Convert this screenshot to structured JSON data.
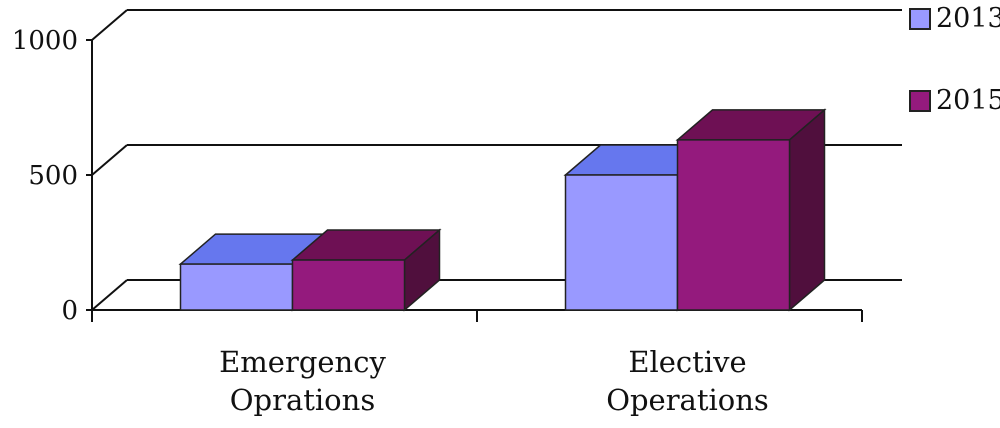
{
  "chart_data": {
    "type": "bar",
    "style": "3d-clustered-column",
    "categories": [
      "Emergency\nOprations",
      "Elective\nOperations"
    ],
    "series": [
      {
        "name": "2013",
        "values": [
          170,
          500
        ],
        "colors": {
          "front": "#9999FF",
          "top": "#6677EE",
          "side": "#7070C8"
        }
      },
      {
        "name": "2015",
        "values": [
          185,
          630
        ],
        "colors": {
          "front": "#941A7D",
          "top": "#6E1054",
          "side": "#500F3D"
        }
      }
    ],
    "y_ticks": [
      "0",
      "500",
      "1000"
    ],
    "ylim": [
      0,
      1000
    ],
    "grid": true,
    "legend_position": "right",
    "title": "",
    "xlabel": "",
    "ylabel": ""
  }
}
